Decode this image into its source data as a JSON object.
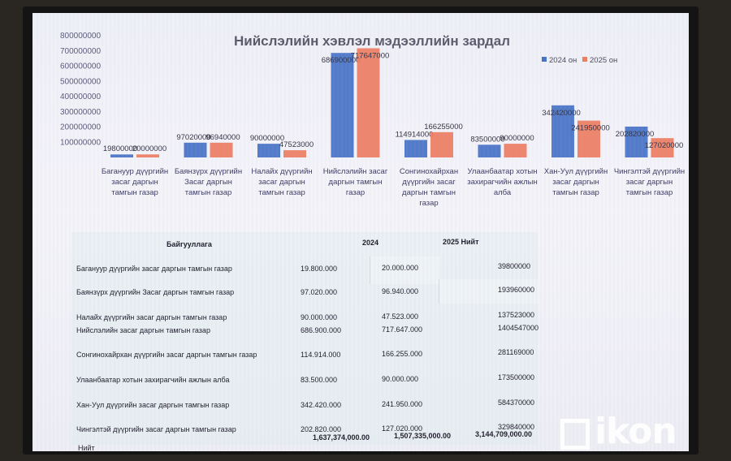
{
  "chart_data": {
    "type": "bar",
    "title": "Нийслэлийн хэвлэл мэдээллийн зардал",
    "ylim": [
      0,
      800000000
    ],
    "yticks": [
      "100000000",
      "200000000",
      "300000000",
      "400000000",
      "500000000",
      "600000000",
      "700000000",
      "800000000"
    ],
    "categories": [
      [
        "Багануур дүүргийн",
        "засаг даргын",
        "тамгын газар"
      ],
      [
        "Баянзүрх дүүргийн",
        "Засаг даргын",
        "тамгын газар"
      ],
      [
        "Налайх дүүргийн",
        "засаг даргын",
        "тамгын газар"
      ],
      [
        "Нийслэлийн засаг",
        "даргын тамгын",
        "газар"
      ],
      [
        "Сонгинохайрхан",
        "дүүргийн засаг",
        "даргын тамгын",
        "газар"
      ],
      [
        "Улаанбаатар хотын",
        "захирагчийн ажлын",
        "алба"
      ],
      [
        "Хан-Уул дүүргийн",
        "засаг даргын",
        "тамгын газар"
      ],
      [
        "Чингэлтэй дүүргийн",
        "засаг даргын",
        "тамгын газар"
      ]
    ],
    "series": [
      {
        "name": "2024 он",
        "color": "#4472c4",
        "values": [
          19800000,
          97020000,
          90000000,
          686900000,
          114914000,
          83500000,
          342420000,
          202820000
        ]
      },
      {
        "name": "2025 он",
        "color": "#ed7d5f",
        "values": [
          20000000,
          96940000,
          47523000,
          717647000,
          166255000,
          90000000,
          241950000,
          127020000
        ]
      }
    ],
    "data_labels": [
      [
        "19800000",
        "20000000"
      ],
      [
        "97020000",
        "96940000"
      ],
      [
        "90000000",
        "47523000"
      ],
      [
        "686900000",
        "717647000"
      ],
      [
        "114914000",
        "166255000"
      ],
      [
        "83500000",
        "90000000"
      ],
      [
        "342420000",
        "241950000"
      ],
      [
        "202820000",
        "127020000"
      ]
    ],
    "legend": "top-right"
  },
  "table": {
    "headers": {
      "org": "Байгууллага",
      "y2024": "2024",
      "y2025": "2025 Нийт"
    },
    "rows": [
      {
        "org": "Багануур дүүргийн засаг даргын тамгын газар",
        "y2024": "19.800.000",
        "y2025": "20.000.000",
        "total": "39800000"
      },
      {
        "org": "Баянзүрх дүүргийн Засаг даргын тамгын газар",
        "y2024": "97.020.000",
        "y2025": "96.940.000",
        "total": "193960000"
      },
      {
        "org": "Налайх дүүргийн засаг даргын тамгын газар",
        "y2024": "90.000.000",
        "y2025": "47.523.000",
        "total": "137523000"
      },
      {
        "org": "Нийслэлийн засаг даргын тамгын газар",
        "y2024": "686.900.000",
        "y2025": "717.647.000",
        "total": "1404547000"
      },
      {
        "org": "Сонгинохайрхан дүүргийн засаг даргын тамгын газар",
        "y2024": "114.914.000",
        "y2025": "166.255.000",
        "total": "281169000"
      },
      {
        "org": "Улаанбаатар хотын захирагчийн ажлын алба",
        "y2024": "83.500.000",
        "y2025": "90.000.000",
        "total": "173500000"
      },
      {
        "org": "Хан-Уул дүүргийн засаг даргын тамгын газар",
        "y2024": "342.420.000",
        "y2025": "241.950.000",
        "total": "584370000"
      },
      {
        "org": "Чингэлтэй дүүргийн засаг даргын тамгын газар",
        "y2024": "202.820.000",
        "y2025": "127.020.000",
        "total": "329840000"
      }
    ],
    "total": {
      "label": "Нийт",
      "y2024": "1,637,374,000.00",
      "y2025": "1,507,335,000.00",
      "total": "3,144,709,000.00"
    }
  },
  "watermark": "ikon"
}
